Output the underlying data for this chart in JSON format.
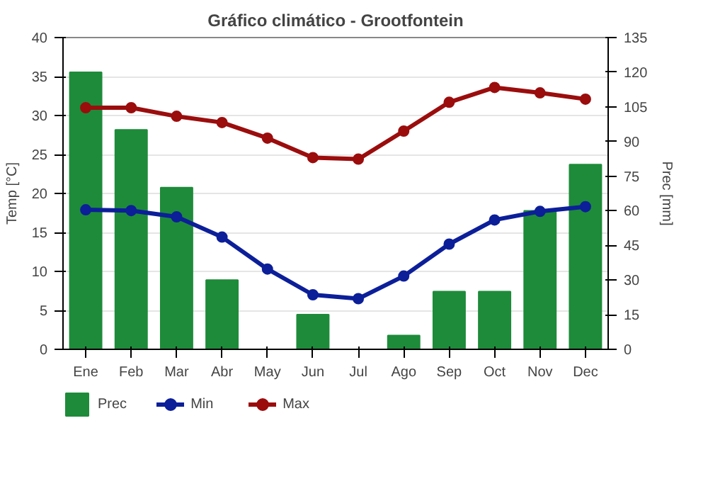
{
  "chart_data": {
    "type": "line",
    "title": "Gráfico climático - Grootfontein",
    "xlabel": null,
    "ylabel": "Temp [°C]",
    "y2label": "Prec [mm]",
    "categories": [
      "Ene",
      "Feb",
      "Mar",
      "Abr",
      "May",
      "Jun",
      "Jul",
      "Ago",
      "Sep",
      "Oct",
      "Nov",
      "Dec"
    ],
    "series": [
      {
        "name": "Prec",
        "type": "bar",
        "axis": "y2",
        "color": "#1e8b3a",
        "values": [
          120,
          95,
          70,
          30,
          0,
          15,
          0,
          6,
          25,
          25,
          60,
          80
        ]
      },
      {
        "name": "Min",
        "color": "#0c1f99",
        "values": [
          17.9,
          17.8,
          17,
          14.4,
          10.3,
          7,
          6.5,
          9.4,
          13.5,
          16.6,
          17.7,
          18.3
        ]
      },
      {
        "name": "Max",
        "color": "#9b0d0d",
        "values": [
          31,
          31,
          29.9,
          29.1,
          27.1,
          24.6,
          24.4,
          28,
          31.7,
          33.6,
          32.9,
          32.1
        ]
      }
    ],
    "ylim": [
      0,
      40
    ],
    "yticks": [
      0,
      5,
      10,
      15,
      20,
      25,
      30,
      35,
      40
    ],
    "y2lim": [
      0,
      135
    ],
    "y2ticks": [
      0,
      15,
      30,
      45,
      60,
      75,
      90,
      105,
      120,
      135
    ],
    "grid": "y",
    "legend": "bottom",
    "marker": "circle",
    "line_style": "solid"
  }
}
